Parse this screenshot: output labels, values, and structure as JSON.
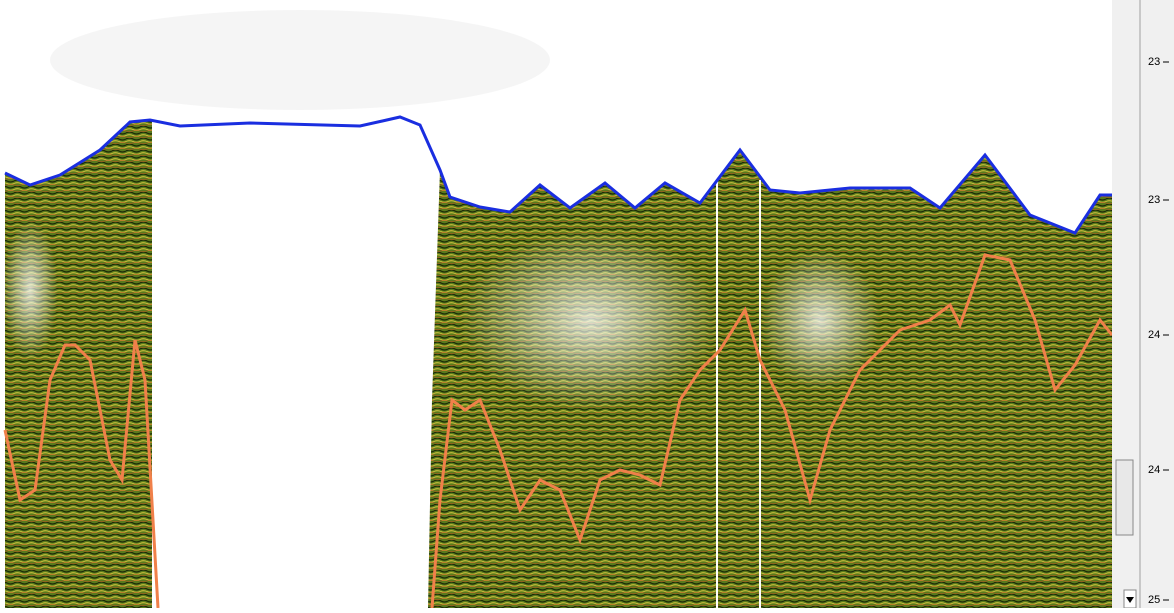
{
  "depth_axis": {
    "ticks": [
      "23",
      "23",
      "24",
      "24",
      "25"
    ]
  }
}
